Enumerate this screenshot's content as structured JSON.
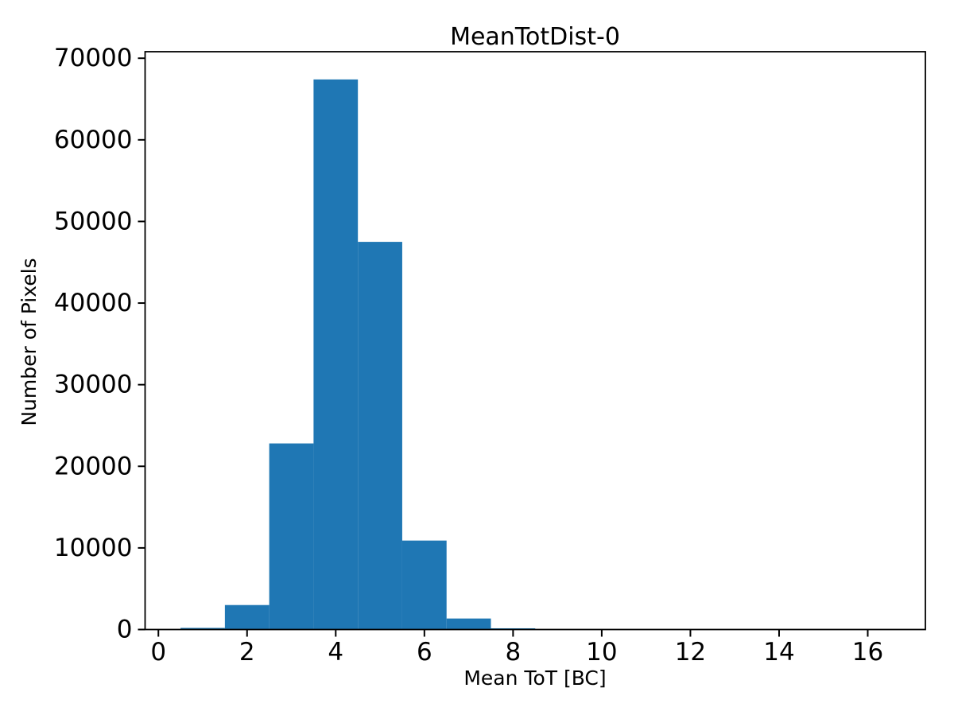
{
  "chart_data": {
    "type": "bar",
    "subtype": "histogram",
    "title": "MeanTotDist-0",
    "xlabel": "Mean ToT [BC]",
    "ylabel": "Number of Pixels",
    "bar_color": "#1f77b4",
    "axis_color": "#000000",
    "background_color": "#ffffff",
    "bin_width": 1,
    "bin_centers": [
      1,
      2,
      3,
      4,
      5,
      6,
      7,
      8,
      9,
      10,
      11,
      12,
      13,
      14,
      15,
      16
    ],
    "counts": [
      200,
      3000,
      22800,
      67400,
      47500,
      10900,
      1350,
      150,
      0,
      0,
      0,
      0,
      0,
      0,
      0,
      0
    ],
    "xlim": [
      -0.3,
      17.3
    ],
    "ylim": [
      0,
      70800
    ],
    "x_ticks": [
      0,
      2,
      4,
      6,
      8,
      10,
      12,
      14,
      16
    ],
    "y_ticks": [
      0,
      10000,
      20000,
      30000,
      40000,
      50000,
      60000,
      70000
    ],
    "grid": false,
    "legend_position": "none"
  }
}
